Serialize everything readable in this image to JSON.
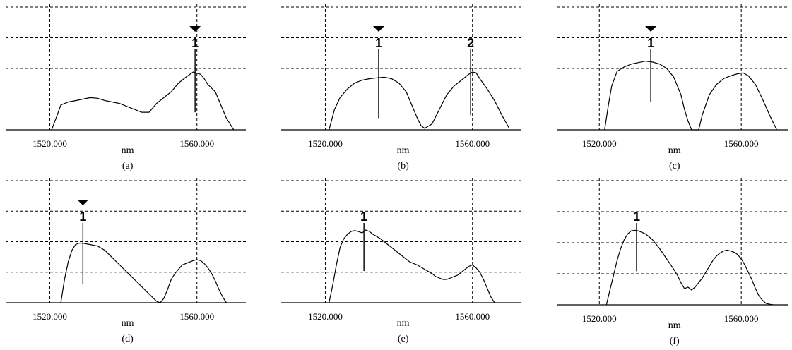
{
  "figure": {
    "colors": {
      "line": "#000000",
      "grid": "#000000",
      "background": "#ffffff"
    }
  },
  "chart_data": [
    {
      "type": "line",
      "panel_label": "(a)",
      "xlabel": "nm",
      "ylabel": "",
      "tick_labels": [
        "1520.000",
        "1560.000"
      ],
      "xlim": [
        1508,
        1572
      ],
      "ylim": [
        0,
        4.2
      ],
      "grid": true,
      "series": [
        {
          "x": [
            1520.5,
            1522,
            1523,
            1525,
            1527,
            1529,
            1531,
            1533,
            1535,
            1537,
            1539,
            1541,
            1543,
            1545,
            1547,
            1549,
            1551,
            1553,
            1555,
            1557,
            1559,
            1561,
            1562,
            1563,
            1565,
            1567,
            1568,
            1569,
            1570
          ],
          "values": [
            0,
            0.5,
            0.85,
            0.95,
            1.0,
            1.05,
            1.1,
            1.08,
            1.0,
            0.95,
            0.9,
            0.8,
            0.7,
            0.6,
            0.6,
            0.9,
            1.1,
            1.3,
            1.6,
            1.8,
            1.98,
            1.9,
            1.75,
            1.55,
            1.3,
            0.7,
            0.4,
            0.2,
            0
          ]
        }
      ],
      "markers": [
        {
          "label": "1",
          "x": 1559.5,
          "y": 2.0,
          "arrow": true
        }
      ]
    },
    {
      "type": "line",
      "panel_label": "(b)",
      "xlabel": "nm",
      "ylabel": "",
      "tick_labels": [
        "1520.000",
        "1560.000"
      ],
      "xlim": [
        1508,
        1572
      ],
      "ylim": [
        0,
        4.2
      ],
      "grid": true,
      "series": [
        {
          "x": [
            1521,
            1522.5,
            1524,
            1526,
            1528,
            1530,
            1532,
            1534,
            1536,
            1538,
            1540,
            1542,
            1543,
            1544,
            1545,
            1546,
            1547,
            1549,
            1551,
            1553,
            1555,
            1557,
            1559,
            1560,
            1561,
            1562,
            1564,
            1566,
            1568,
            1570
          ],
          "values": [
            0,
            0.7,
            1.1,
            1.4,
            1.6,
            1.7,
            1.75,
            1.78,
            1.8,
            1.75,
            1.6,
            1.3,
            1.0,
            0.7,
            0.4,
            0.15,
            0.05,
            0.2,
            0.7,
            1.2,
            1.5,
            1.7,
            1.9,
            1.98,
            1.95,
            1.75,
            1.4,
            1.0,
            0.5,
            0.05
          ]
        }
      ],
      "markers": [
        {
          "label": "1",
          "x": 1534.5,
          "y": 1.8,
          "arrow": true
        },
        {
          "label": "2",
          "x": 1559.5,
          "y": 1.9,
          "arrow": false
        }
      ]
    },
    {
      "type": "line",
      "panel_label": "(c)",
      "xlabel": "nm",
      "ylabel": "",
      "tick_labels": [
        "1520.000",
        "1560.000"
      ],
      "xlim": [
        1508,
        1572
      ],
      "ylim": [
        0,
        4.2
      ],
      "grid": true,
      "series": [
        {
          "x": [
            1521.5,
            1522.5,
            1523.5,
            1525,
            1527,
            1529,
            1531,
            1533,
            1535,
            1537,
            1539,
            1541,
            1543,
            1544,
            1545,
            1546,
            1547,
            1548,
            1549,
            1551,
            1553,
            1555,
            1557,
            1559,
            1560.5,
            1562,
            1564,
            1566,
            1568,
            1570
          ],
          "values": [
            0,
            0.8,
            1.5,
            2.0,
            2.15,
            2.25,
            2.3,
            2.35,
            2.32,
            2.25,
            2.1,
            1.8,
            1.2,
            0.7,
            0.3,
            0,
            0,
            0,
            0.5,
            1.2,
            1.55,
            1.75,
            1.85,
            1.92,
            1.95,
            1.85,
            1.55,
            1.05,
            0.5,
            0
          ]
        }
      ],
      "markers": [
        {
          "label": "1",
          "x": 1534.5,
          "y": 2.35,
          "arrow": true
        }
      ]
    },
    {
      "type": "line",
      "panel_label": "(d)",
      "xlabel": "nm",
      "ylabel": "",
      "tick_labels": [
        "1520.000",
        "1560.000"
      ],
      "xlim": [
        1508,
        1572
      ],
      "ylim": [
        0,
        4.2
      ],
      "grid": true,
      "series": [
        {
          "x": [
            1523,
            1524,
            1525,
            1526,
            1527,
            1528,
            1529,
            1531,
            1533,
            1535,
            1537,
            1539,
            1541,
            1543,
            1545,
            1547,
            1549,
            1550,
            1551,
            1552,
            1553,
            1554,
            1555,
            1556,
            1557,
            1558,
            1559,
            1560,
            1561,
            1562,
            1563,
            1564,
            1565,
            1566,
            1567,
            1568
          ],
          "values": [
            0,
            0.8,
            1.4,
            1.8,
            2.0,
            2.05,
            2.05,
            2.0,
            1.95,
            1.8,
            1.55,
            1.3,
            1.05,
            0.8,
            0.55,
            0.3,
            0.05,
            0,
            0.15,
            0.45,
            0.8,
            1.0,
            1.15,
            1.3,
            1.35,
            1.4,
            1.45,
            1.48,
            1.45,
            1.35,
            1.2,
            1.0,
            0.75,
            0.45,
            0.2,
            0
          ]
        }
      ],
      "markers": [
        {
          "label": "1",
          "x": 1529,
          "y": 2.05,
          "arrow": true
        }
      ]
    },
    {
      "type": "line",
      "panel_label": "(e)",
      "xlabel": "nm",
      "ylabel": "",
      "tick_labels": [
        "1520.000",
        "1560.000"
      ],
      "xlim": [
        1508,
        1572
      ],
      "ylim": [
        0,
        4.2
      ],
      "grid": true,
      "series": [
        {
          "x": [
            1521,
            1522,
            1523,
            1524,
            1525,
            1526,
            1527,
            1528,
            1529,
            1530,
            1531,
            1532,
            1533,
            1535,
            1537,
            1539,
            1541,
            1543,
            1545,
            1547,
            1549,
            1550,
            1551,
            1552,
            1553,
            1554,
            1555,
            1556,
            1557,
            1558,
            1559,
            1560,
            1561,
            1562,
            1563,
            1564,
            1565,
            1566
          ],
          "values": [
            0,
            0.6,
            1.3,
            1.9,
            2.2,
            2.35,
            2.45,
            2.48,
            2.45,
            2.4,
            2.5,
            2.45,
            2.35,
            2.2,
            2.0,
            1.8,
            1.6,
            1.4,
            1.3,
            1.15,
            1.0,
            0.9,
            0.85,
            0.8,
            0.8,
            0.85,
            0.9,
            0.95,
            1.05,
            1.15,
            1.25,
            1.3,
            1.2,
            1.05,
            0.8,
            0.5,
            0.2,
            0
          ]
        }
      ],
      "markers": [
        {
          "label": "1",
          "x": 1530.5,
          "y": 2.5,
          "arrow": false
        }
      ]
    },
    {
      "type": "line",
      "panel_label": "(f)",
      "xlabel": "nm",
      "ylabel": "",
      "tick_labels": [
        "1520.000",
        "1560.000"
      ],
      "xlim": [
        1508,
        1572
      ],
      "ylim": [
        0,
        4.2
      ],
      "grid": true,
      "series": [
        {
          "x": [
            1522,
            1523,
            1524,
            1525,
            1526,
            1527,
            1528,
            1529,
            1530,
            1531,
            1532,
            1533,
            1534,
            1535,
            1537,
            1539,
            1541,
            1542,
            1543,
            1544,
            1545,
            1546,
            1547,
            1548,
            1549,
            1550,
            1551,
            1552,
            1553,
            1554,
            1555,
            1556,
            1557,
            1558,
            1559,
            1560,
            1561,
            1562,
            1563,
            1564,
            1565,
            1566,
            1567,
            1568,
            1569
          ],
          "values": [
            0,
            0.5,
            1.0,
            1.5,
            1.9,
            2.2,
            2.4,
            2.5,
            2.52,
            2.5,
            2.45,
            2.4,
            2.3,
            2.2,
            1.9,
            1.55,
            1.2,
            1.0,
            0.75,
            0.55,
            0.6,
            0.5,
            0.6,
            0.75,
            0.9,
            1.1,
            1.3,
            1.5,
            1.65,
            1.75,
            1.82,
            1.85,
            1.82,
            1.78,
            1.7,
            1.55,
            1.35,
            1.1,
            0.85,
            0.55,
            0.3,
            0.15,
            0.05,
            0.02,
            0
          ]
        }
      ],
      "markers": [
        {
          "label": "1",
          "x": 1530.5,
          "y": 2.52,
          "arrow": false
        }
      ]
    }
  ]
}
